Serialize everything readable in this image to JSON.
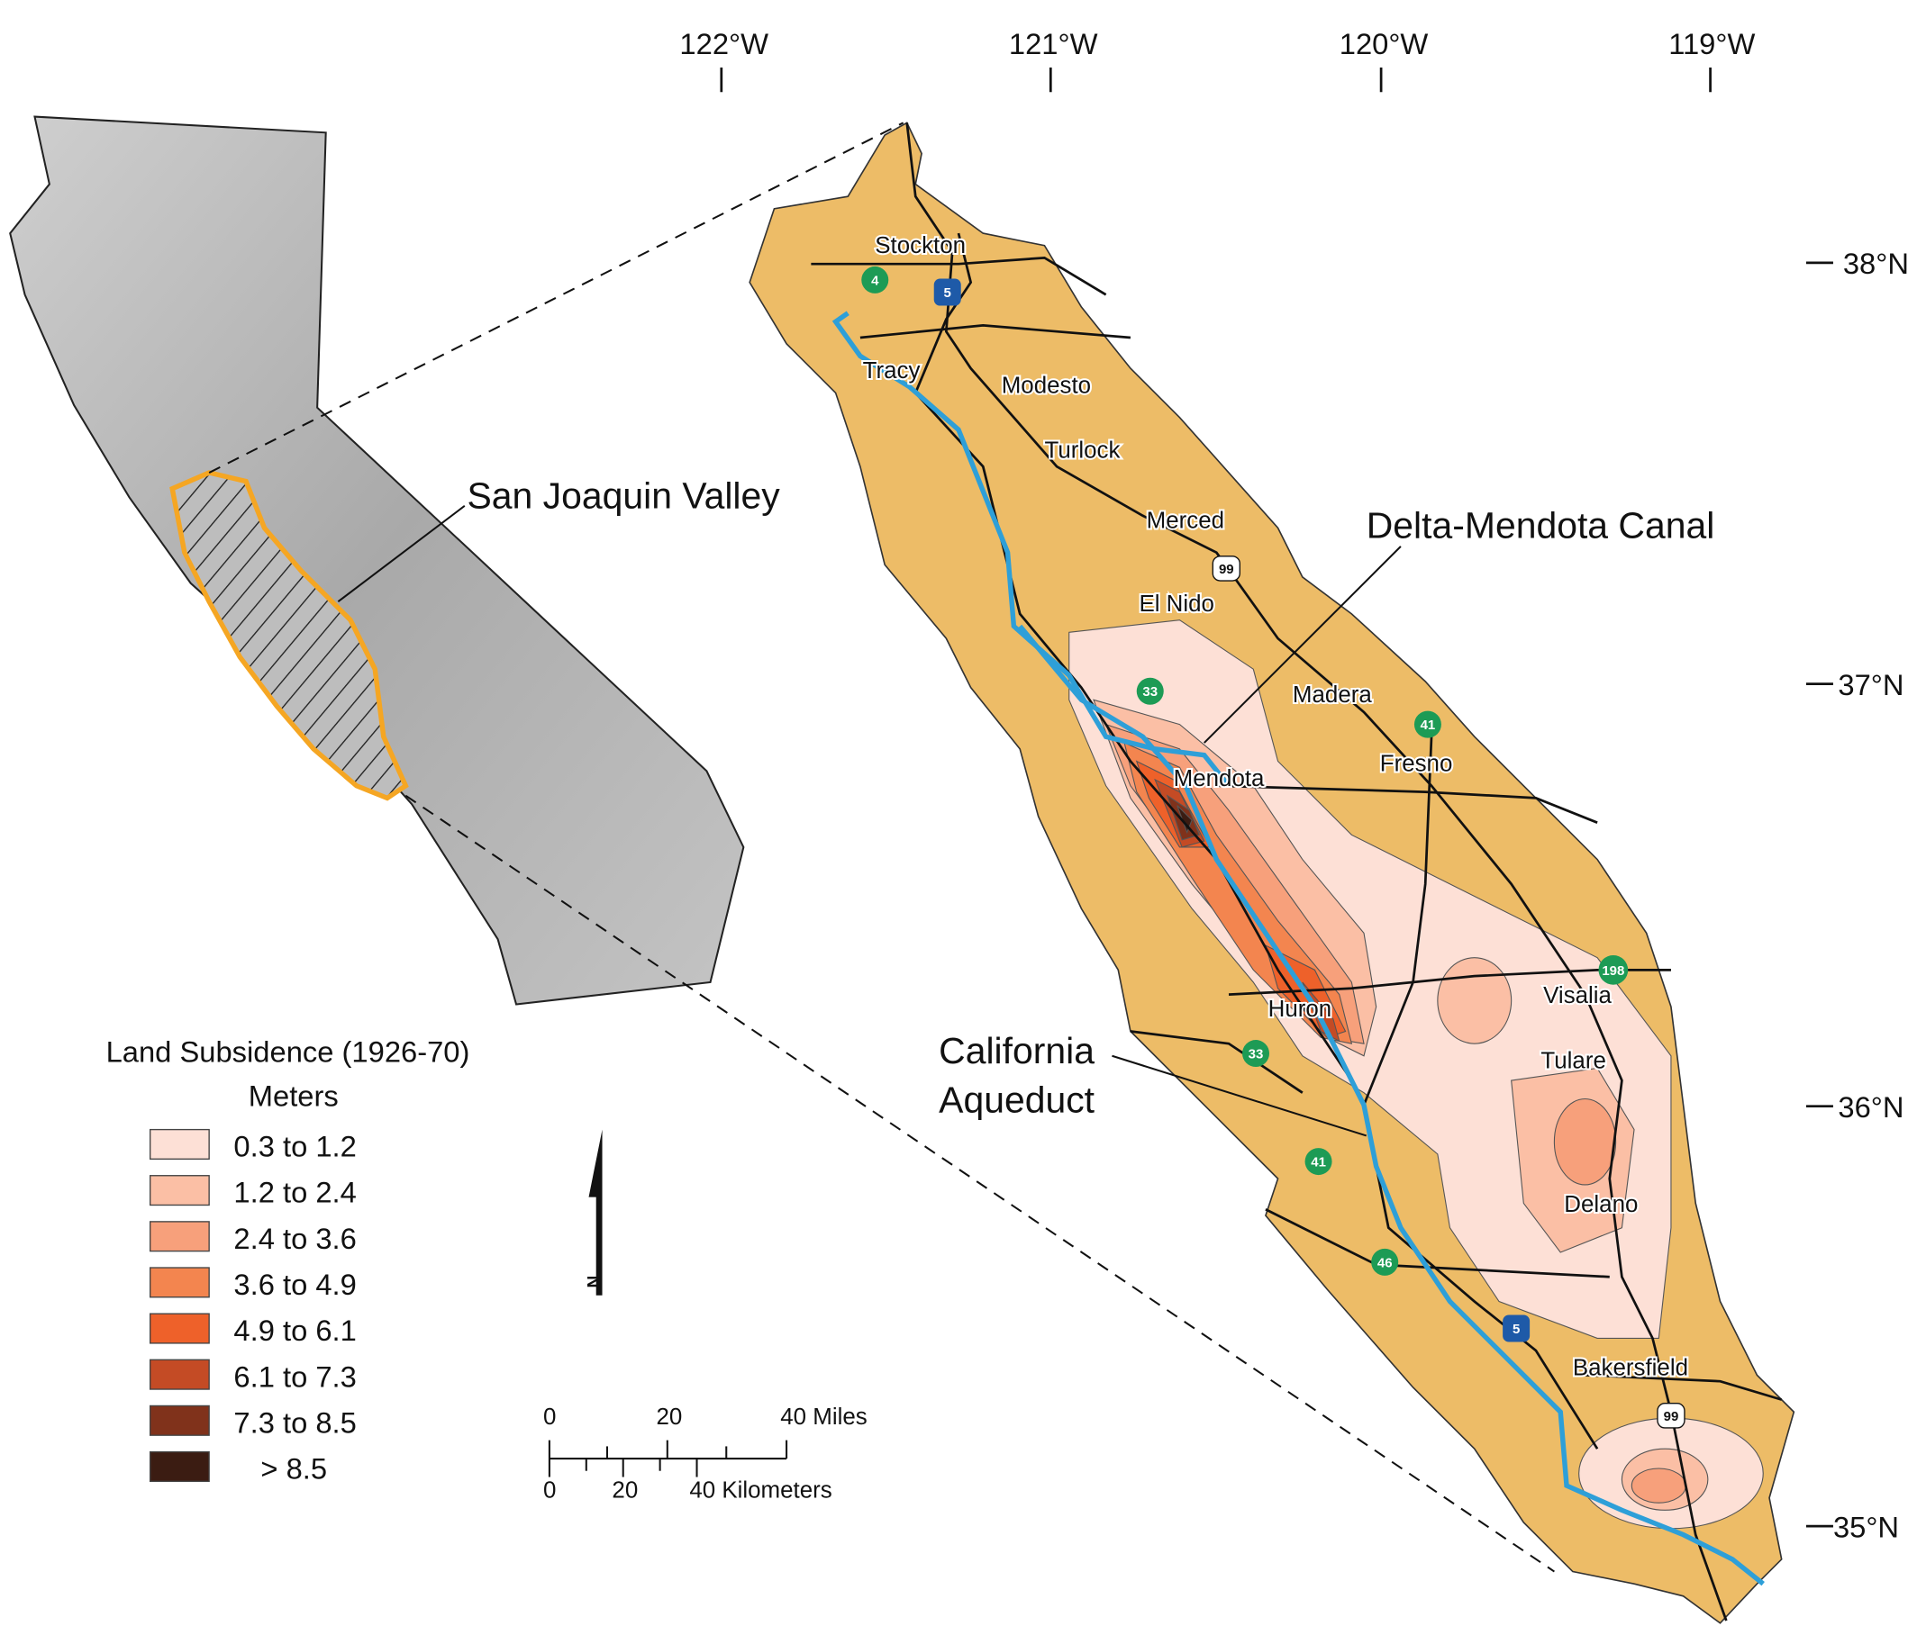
{
  "map": {
    "inset_label": "San Joaquin Valley",
    "callouts": {
      "delta_mendota": "Delta-Mendota Canal",
      "aqueduct_line1": "California",
      "aqueduct_line2": "Aqueduct"
    },
    "colors": {
      "valley": "#EDBC67",
      "canal": "#2E9FD8",
      "inset_outline": "#F5A623",
      "relief": "#B9B9B9"
    },
    "longitudes": [
      "122°W",
      "121°W",
      "120°W",
      "119°W"
    ],
    "latitudes": [
      "38°N",
      "37°N",
      "36°N",
      "35°N"
    ],
    "cities": [
      "Stockton",
      "Tracy",
      "Modesto",
      "Turlock",
      "Merced",
      "El Nido",
      "Madera",
      "Fresno",
      "Mendota",
      "Huron",
      "Visalia",
      "Tulare",
      "Delano",
      "Bakersfield"
    ],
    "highways": [
      {
        "num": "4",
        "type": "state"
      },
      {
        "num": "5",
        "type": "interstate"
      },
      {
        "num": "99",
        "type": "us"
      },
      {
        "num": "33",
        "type": "state"
      },
      {
        "num": "41",
        "type": "state"
      },
      {
        "num": "198",
        "type": "state"
      },
      {
        "num": "33",
        "type": "state"
      },
      {
        "num": "41",
        "type": "state"
      },
      {
        "num": "46",
        "type": "state"
      },
      {
        "num": "5",
        "type": "interstate"
      },
      {
        "num": "99",
        "type": "us"
      }
    ]
  },
  "legend": {
    "title": "Land Subsidence (1926-70)",
    "units": "Meters",
    "classes": [
      {
        "label": "0.3 to 1.2",
        "color": "#FDE0D6"
      },
      {
        "label": "1.2 to 2.4",
        "color": "#FBBFA5"
      },
      {
        "label": "2.4 to 3.6",
        "color": "#F7A07B"
      },
      {
        "label": "3.6 to 4.9",
        "color": "#F3854F"
      },
      {
        "label": "4.9 to 6.1",
        "color": "#EE612A"
      },
      {
        "label": "6.1 to 7.3",
        "color": "#C44B25"
      },
      {
        "label": "7.3 to 8.5",
        "color": "#80321B"
      },
      {
        "label": "> 8.5",
        "color": "#3B1C12"
      }
    ]
  },
  "north_arrow": {
    "label": "N"
  },
  "scale_bar": {
    "miles": [
      "0",
      "20",
      "40 Miles"
    ],
    "km": [
      "0",
      "20",
      "40 Kilometers"
    ]
  }
}
